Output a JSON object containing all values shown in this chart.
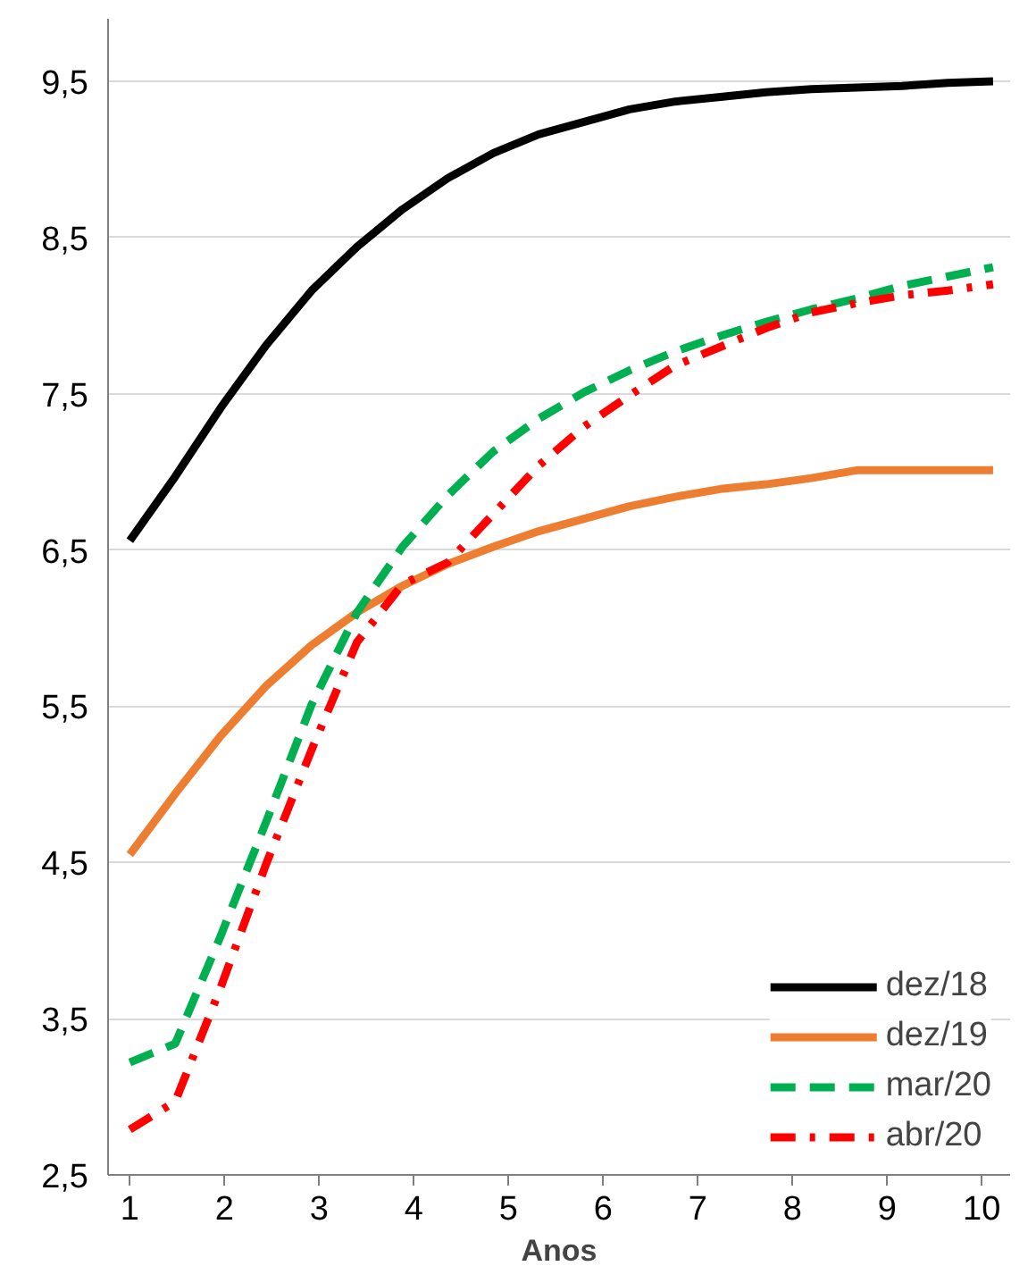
{
  "chart_data": {
    "type": "line",
    "xlabel": "Anos",
    "x": [
      1,
      1.48,
      1.96,
      2.44,
      2.92,
      3.4,
      3.88,
      4.36,
      4.84,
      5.32,
      5.8,
      6.28,
      6.76,
      7.24,
      7.72,
      8.2,
      8.68,
      9.16,
      9.64,
      10.12
    ],
    "series": [
      {
        "name": "dez/18",
        "color": "#000000",
        "line_style": "solid",
        "values": [
          6.56,
          6.97,
          7.41,
          7.81,
          8.16,
          8.44,
          8.68,
          8.88,
          9.04,
          9.16,
          9.24,
          9.32,
          9.37,
          9.4,
          9.43,
          9.45,
          9.46,
          9.47,
          9.49,
          9.5
        ]
      },
      {
        "name": "dez/19",
        "color": "#ed7d31",
        "line_style": "solid",
        "values": [
          4.55,
          4.94,
          5.31,
          5.63,
          5.89,
          6.1,
          6.27,
          6.41,
          6.52,
          6.62,
          6.7,
          6.78,
          6.84,
          6.89,
          6.92,
          6.96,
          7.01,
          7.01,
          7.01,
          7.01
        ]
      },
      {
        "name": "mar/20",
        "color": "#00b050",
        "line_style": "dashed",
        "values": [
          3.22,
          3.34,
          4.03,
          4.76,
          5.51,
          6.1,
          6.52,
          6.85,
          7.13,
          7.34,
          7.51,
          7.65,
          7.77,
          7.87,
          7.96,
          8.04,
          8.11,
          8.19,
          8.25,
          8.31
        ]
      },
      {
        "name": "abr/20",
        "color": "#ff0000",
        "line_style": "dashdot",
        "values": [
          2.79,
          2.97,
          3.7,
          4.49,
          5.22,
          5.91,
          6.28,
          6.42,
          6.73,
          7.04,
          7.29,
          7.49,
          7.68,
          7.8,
          7.92,
          8.02,
          8.08,
          8.13,
          8.16,
          8.2
        ]
      }
    ],
    "xlim": [
      0.77,
      10.3
    ],
    "ylim": [
      2.5,
      9.9
    ],
    "xticks": [
      1,
      2,
      3,
      4,
      5,
      6,
      7,
      8,
      9,
      10
    ],
    "yticks": [
      {
        "value": 2.5,
        "label": "2,5"
      },
      {
        "value": 3.5,
        "label": "3,5"
      },
      {
        "value": 4.5,
        "label": "4,5"
      },
      {
        "value": 5.5,
        "label": "5,5"
      },
      {
        "value": 6.5,
        "label": "6,5"
      },
      {
        "value": 7.5,
        "label": "7,5"
      },
      {
        "value": 8.5,
        "label": "8,5"
      },
      {
        "value": 9.5,
        "label": "9,5"
      }
    ],
    "grid": "y",
    "legend": "bottom right"
  }
}
